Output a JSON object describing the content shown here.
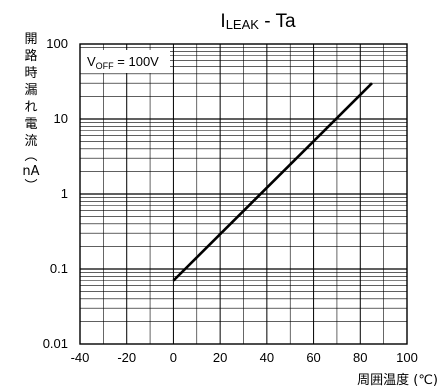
{
  "chart_data": {
    "type": "line",
    "title": {
      "main": "I",
      "sub": "LEAK",
      "rest": " - Ta"
    },
    "xlabel": "周囲温度 (℃)",
    "ylabel": [
      "開",
      "路",
      "時",
      "漏",
      "れ",
      "電",
      "流",
      "︵",
      "nA",
      "︶"
    ],
    "xlim": [
      -40,
      100
    ],
    "ylim": [
      0.01,
      100
    ],
    "yscale": "log",
    "grid": true,
    "x_ticks": [
      -40,
      -20,
      0,
      20,
      40,
      60,
      80,
      100
    ],
    "x_tick_labels": [
      "-40",
      "-20",
      "0",
      "20",
      "40",
      "60",
      "80",
      "100"
    ],
    "y_ticks": [
      0.01,
      0.1,
      1,
      10,
      100
    ],
    "y_tick_labels": [
      "0.01",
      "0.1",
      "1",
      "10",
      "100"
    ],
    "annotation": {
      "main": "V",
      "sub": "OFF",
      "rest": " = 100V"
    },
    "series": [
      {
        "x": [
          0,
          85
        ],
        "y": [
          0.07,
          30
        ]
      }
    ]
  }
}
